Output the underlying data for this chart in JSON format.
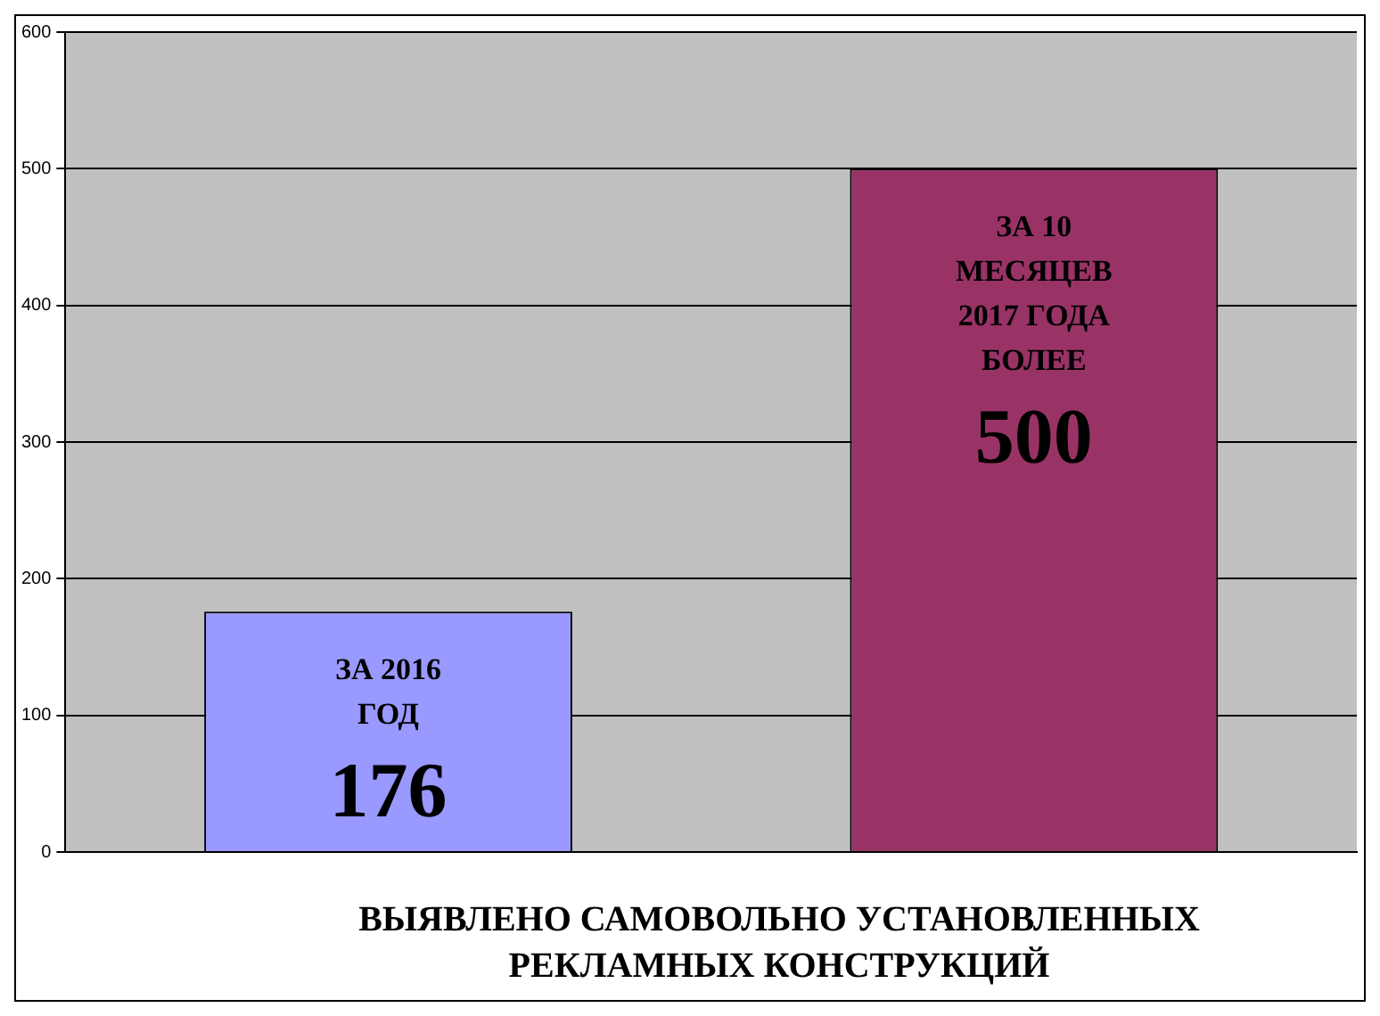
{
  "chart_data": {
    "type": "bar",
    "xlabel": "ВЫЯВЛЕНО САМОВОЛЬНО УСТАНОВЛЕННЫХ РЕКЛАМНЫХ КОНСТРУКЦИЙ",
    "categories": [
      null
    ],
    "series": [
      {
        "name": "ЗА 2016 ГОД",
        "color": "#9999ff",
        "values": [
          176
        ]
      },
      {
        "name": "ЗА 10 МЕСЯЦЕВ 2017 ГОДА БОЛЕЕ",
        "color": "#993366",
        "values": [
          500
        ]
      }
    ],
    "ylim": [
      0,
      600
    ],
    "yticks": [
      0,
      100,
      200,
      300,
      400,
      500,
      600
    ],
    "grid": "y",
    "data_labels": true
  }
}
